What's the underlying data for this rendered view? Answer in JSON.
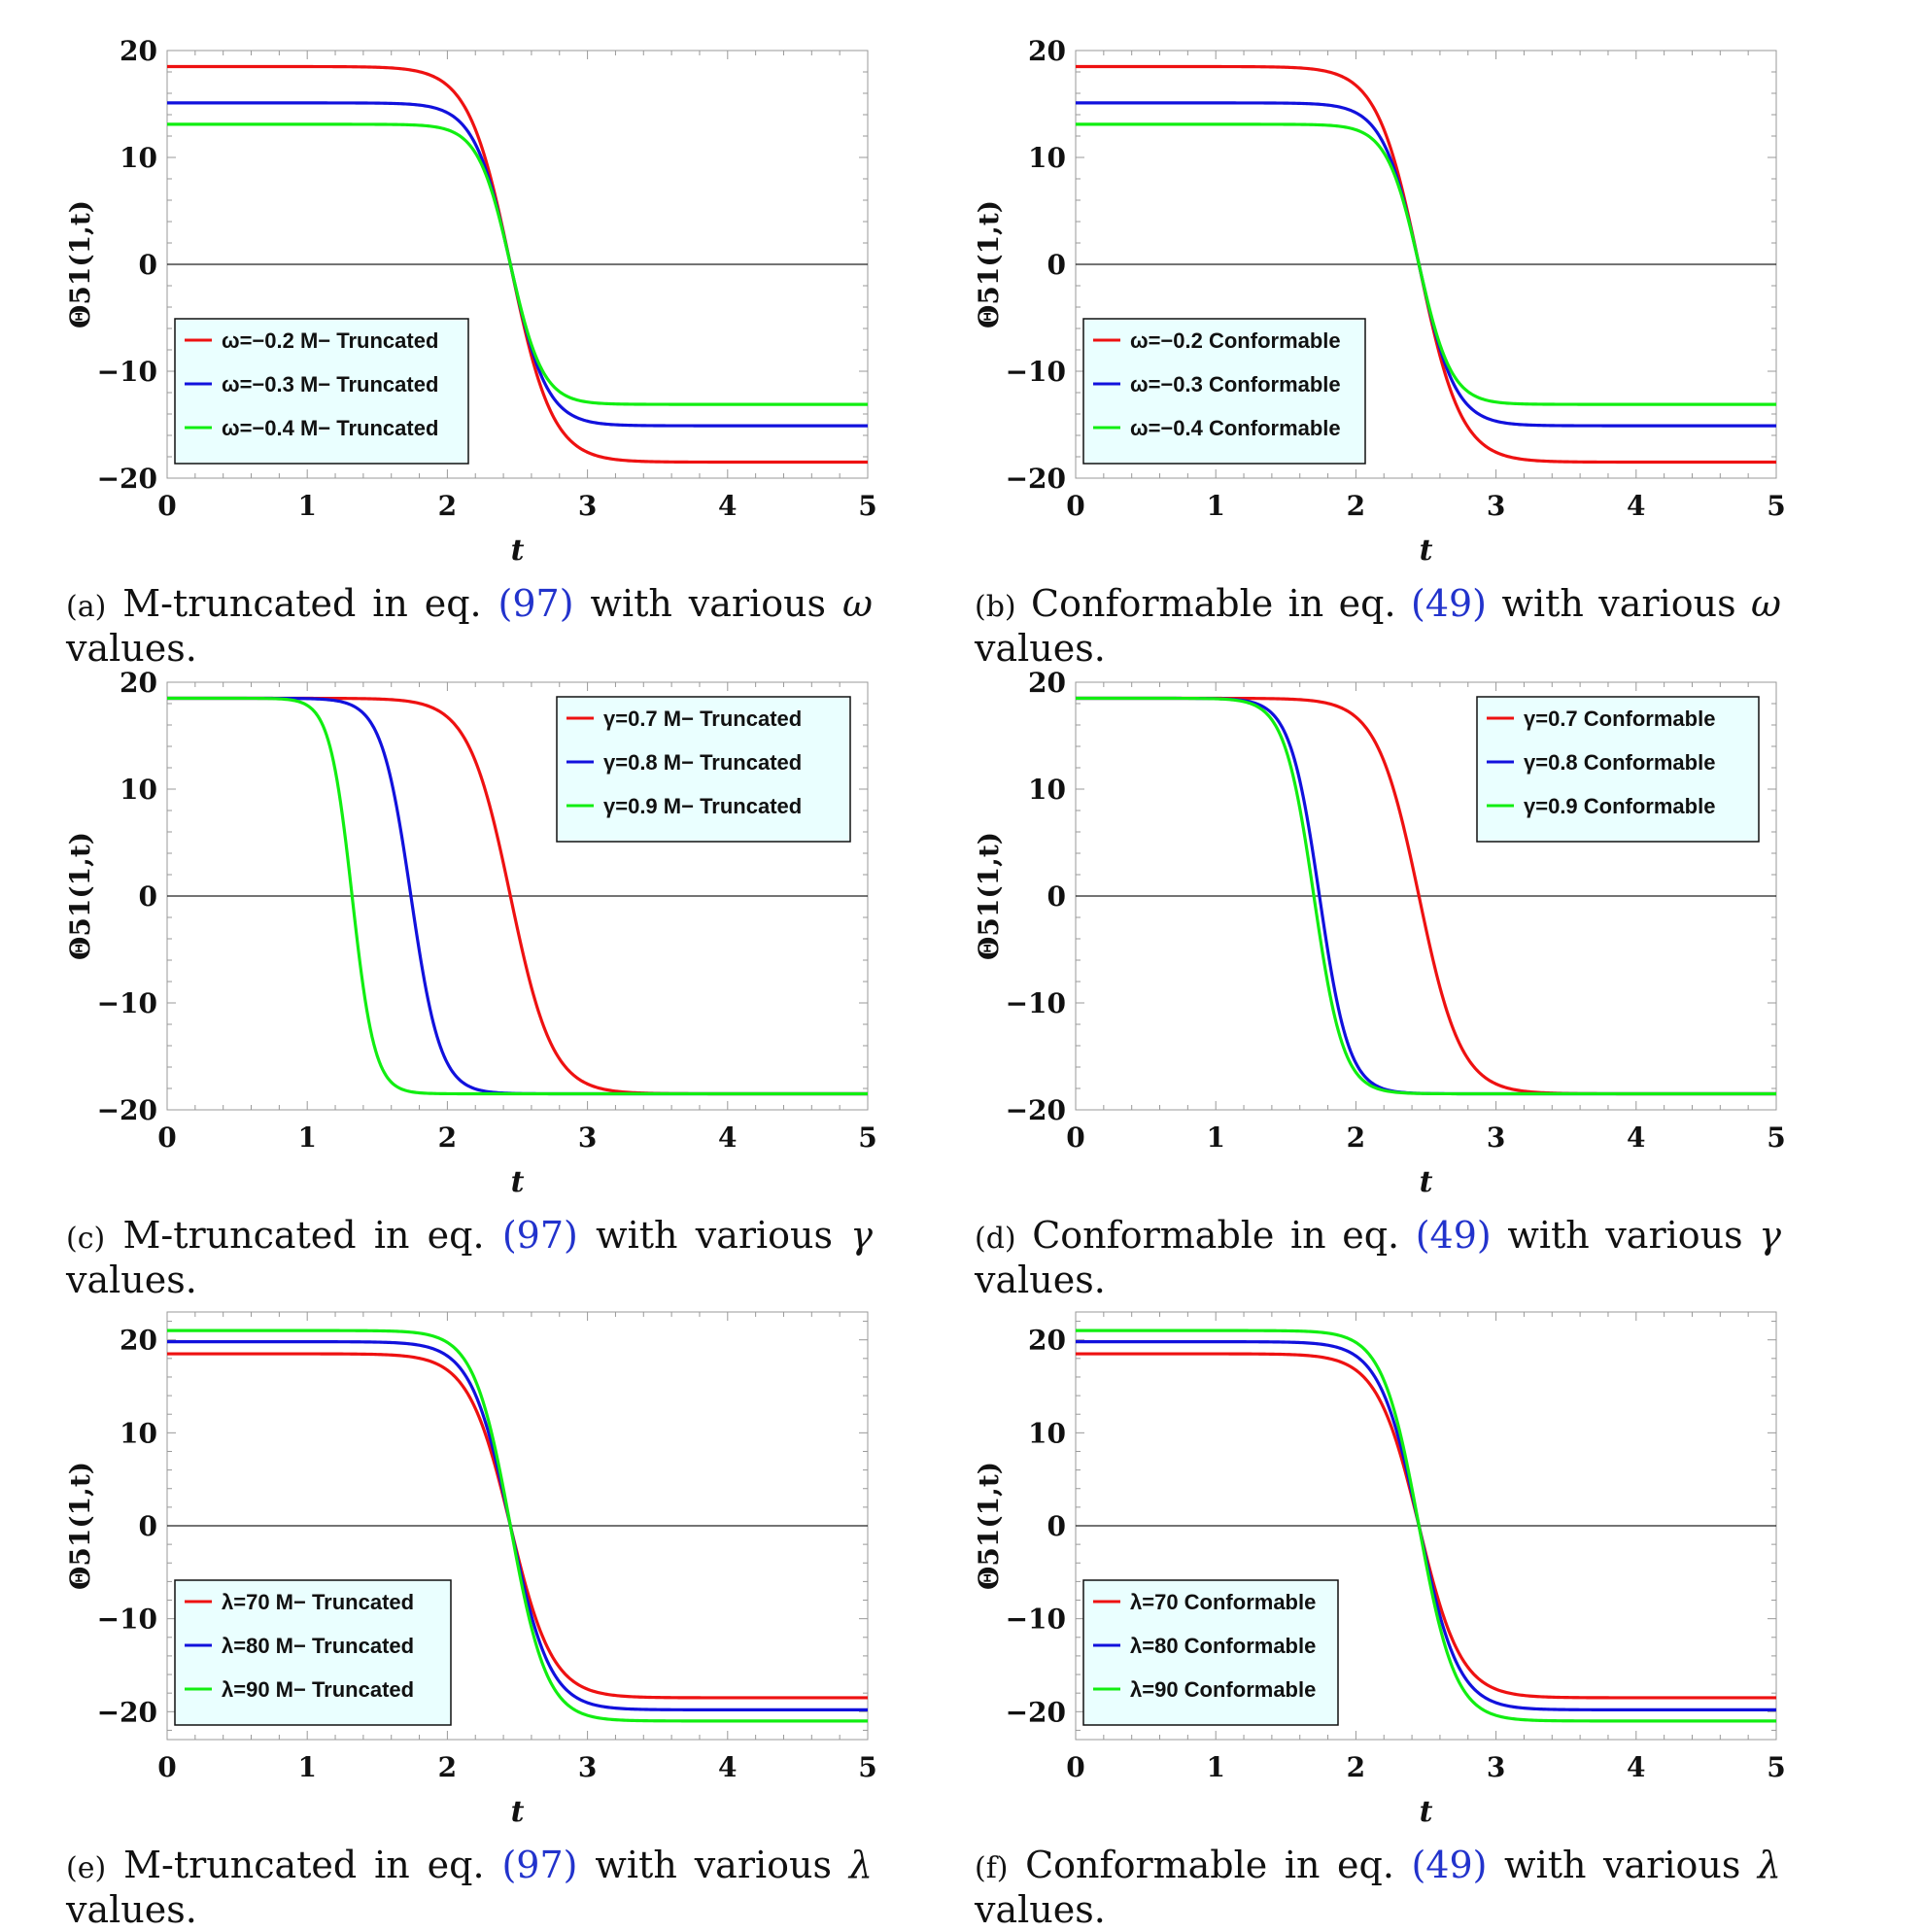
{
  "chart_data": [
    {
      "type": "line",
      "panel": "a",
      "ylabel": "Θ51(1,t)",
      "xlabel": "t",
      "xlim": [
        0,
        5
      ],
      "ylim": [
        -20,
        20
      ],
      "xticks": [
        "0",
        "1",
        "2",
        "3",
        "4",
        "5"
      ],
      "yticks": [
        "20",
        "10",
        "0",
        "−10",
        "−20"
      ],
      "legend_position": "bottom-left",
      "series": [
        {
          "name": "ω=−0.2 M− Truncated",
          "color": "#ee1111",
          "amplitude": 18.5,
          "center": 2.45,
          "width": 0.3
        },
        {
          "name": "ω=−0.3 M− Truncated",
          "color": "#1111dd",
          "amplitude": 15.1,
          "center": 2.45,
          "width": 0.26
        },
        {
          "name": "ω=−0.4 M− Truncated",
          "color": "#11ee11",
          "amplitude": 13.1,
          "center": 2.45,
          "width": 0.23
        }
      ],
      "caption": {
        "label": "(a)",
        "text": "M-truncated in eq.",
        "ref": "(97)",
        "tail": "with various",
        "symbol": "ω",
        "line2": "values."
      }
    },
    {
      "type": "line",
      "panel": "b",
      "ylabel": "Θ51(1,t)",
      "xlabel": "t",
      "xlim": [
        0,
        5
      ],
      "ylim": [
        -20,
        20
      ],
      "xticks": [
        "0",
        "1",
        "2",
        "3",
        "4",
        "5"
      ],
      "yticks": [
        "20",
        "10",
        "0",
        "−10",
        "−20"
      ],
      "legend_position": "bottom-left",
      "series": [
        {
          "name": "ω=−0.2 Conformable",
          "color": "#ee1111",
          "amplitude": 18.5,
          "center": 2.45,
          "width": 0.3
        },
        {
          "name": "ω=−0.3 Conformable",
          "color": "#1111dd",
          "amplitude": 15.1,
          "center": 2.45,
          "width": 0.26
        },
        {
          "name": "ω=−0.4 Conformable",
          "color": "#11ee11",
          "amplitude": 13.1,
          "center": 2.45,
          "width": 0.23
        }
      ],
      "caption": {
        "label": "(b)",
        "text": "Conformable in eq.",
        "ref": "(49)",
        "tail": "with various",
        "symbol": "ω",
        "line2": "values."
      }
    },
    {
      "type": "line",
      "panel": "c",
      "ylabel": "Θ51(1,t)",
      "xlabel": "t",
      "xlim": [
        0,
        5
      ],
      "ylim": [
        -20,
        20
      ],
      "xticks": [
        "0",
        "1",
        "2",
        "3",
        "4",
        "5"
      ],
      "yticks": [
        "20",
        "10",
        "0",
        "−10",
        "−20"
      ],
      "legend_position": "top-right",
      "series": [
        {
          "name": "γ=0.7 M− Truncated",
          "color": "#ee1111",
          "amplitude": 18.5,
          "center": 2.45,
          "width": 0.3
        },
        {
          "name": "γ=0.8 M− Truncated",
          "color": "#1111dd",
          "amplitude": 18.5,
          "center": 1.74,
          "width": 0.21
        },
        {
          "name": "γ=0.9 M− Truncated",
          "color": "#11ee11",
          "amplitude": 18.5,
          "center": 1.32,
          "width": 0.16
        }
      ],
      "caption": {
        "label": "(c)",
        "text": "M-truncated in eq.",
        "ref": "(97)",
        "tail": "with various",
        "symbol": "γ",
        "line2": "values."
      }
    },
    {
      "type": "line",
      "panel": "d",
      "ylabel": "Θ51(1,t)",
      "xlabel": "t",
      "xlim": [
        0,
        5
      ],
      "ylim": [
        -20,
        20
      ],
      "xticks": [
        "0",
        "1",
        "2",
        "3",
        "4",
        "5"
      ],
      "yticks": [
        "20",
        "10",
        "0",
        "−10",
        "−20"
      ],
      "legend_position": "top-right",
      "series": [
        {
          "name": "γ=0.7 Conformable",
          "color": "#ee1111",
          "amplitude": 18.5,
          "center": 2.45,
          "width": 0.3
        },
        {
          "name": "γ=0.8 Conformable",
          "color": "#1111dd",
          "amplitude": 18.5,
          "center": 1.74,
          "width": 0.21
        },
        {
          "name": "γ=0.9 Conformable",
          "color": "#11ee11",
          "amplitude": 18.5,
          "center": 1.7,
          "width": 0.21
        }
      ],
      "caption": {
        "label": "(d)",
        "text": "Conformable in eq.",
        "ref": "(49)",
        "tail": "with various",
        "symbol": "γ",
        "line2": "values."
      }
    },
    {
      "type": "line",
      "panel": "e",
      "ylabel": "Θ51(1,t)",
      "xlabel": "t",
      "xlim": [
        0,
        5
      ],
      "ylim": [
        -23,
        23
      ],
      "xticks": [
        "0",
        "1",
        "2",
        "3",
        "4",
        "5"
      ],
      "yticks": [
        "20",
        "10",
        "0",
        "−10",
        "−20"
      ],
      "legend_position": "bottom-left",
      "series": [
        {
          "name": "λ=70 M− Truncated",
          "color": "#ee1111",
          "amplitude": 18.5,
          "center": 2.45,
          "width": 0.3
        },
        {
          "name": "λ=80 M− Truncated",
          "color": "#1111dd",
          "amplitude": 19.8,
          "center": 2.45,
          "width": 0.28
        },
        {
          "name": "λ=90 M− Truncated",
          "color": "#11ee11",
          "amplitude": 21.0,
          "center": 2.45,
          "width": 0.26
        }
      ],
      "caption": {
        "label": "(e)",
        "text": "M-truncated in eq.",
        "ref": "(97)",
        "tail": "with various",
        "symbol": "λ",
        "line2": "values."
      }
    },
    {
      "type": "line",
      "panel": "f",
      "ylabel": "Θ51(1,t)",
      "xlabel": "t",
      "xlim": [
        0,
        5
      ],
      "ylim": [
        -23,
        23
      ],
      "xticks": [
        "0",
        "1",
        "2",
        "3",
        "4",
        "5"
      ],
      "yticks": [
        "20",
        "10",
        "0",
        "−10",
        "−20"
      ],
      "legend_position": "bottom-left",
      "series": [
        {
          "name": "λ=70 Conformable",
          "color": "#ee1111",
          "amplitude": 18.5,
          "center": 2.45,
          "width": 0.3
        },
        {
          "name": "λ=80 Conformable",
          "color": "#1111dd",
          "amplitude": 19.8,
          "center": 2.45,
          "width": 0.28
        },
        {
          "name": "λ=90 Conformable",
          "color": "#11ee11",
          "amplitude": 21.0,
          "center": 2.45,
          "width": 0.26
        }
      ],
      "caption": {
        "label": "(f)",
        "text": "Conformable in eq.",
        "ref": "(49)",
        "tail": "with various",
        "symbol": "λ",
        "line2": "values."
      }
    }
  ]
}
